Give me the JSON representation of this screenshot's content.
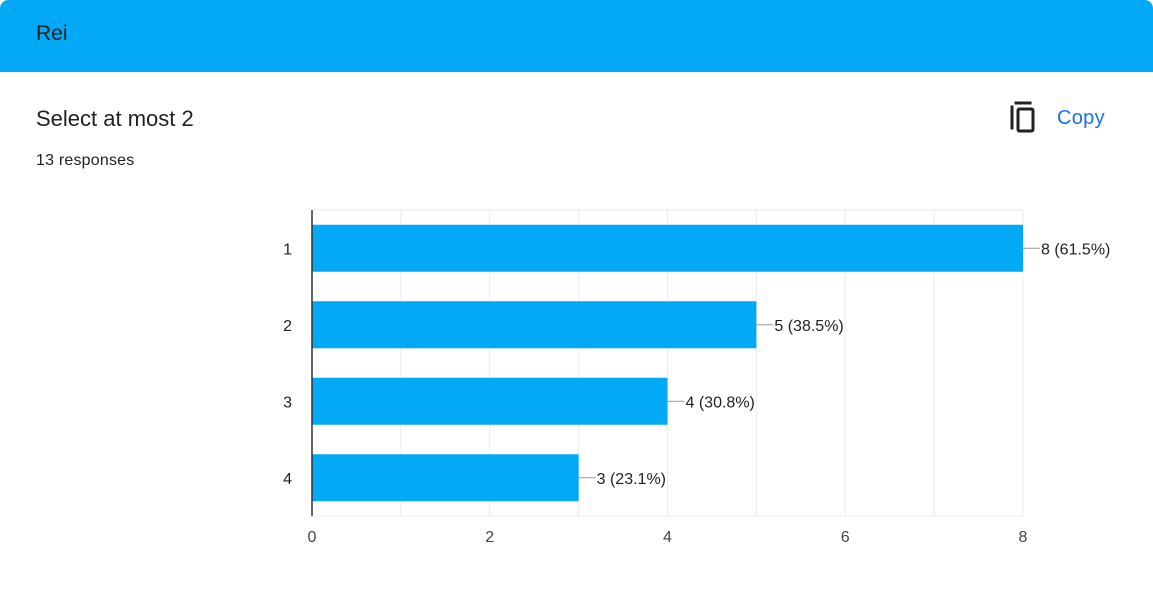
{
  "header": {
    "title": "Rei"
  },
  "question": {
    "title": "Select at most 2",
    "responses": "13 responses"
  },
  "actions": {
    "copy_label": "Copy",
    "copy_icon": "copy-icon"
  },
  "colors": {
    "accent": "#03a9f4",
    "link": "#1a73e8",
    "bar": "#03a9f4"
  },
  "chart_data": {
    "type": "bar",
    "orientation": "horizontal",
    "categories": [
      "1",
      "2",
      "3",
      "4"
    ],
    "values": [
      8,
      5,
      4,
      3
    ],
    "data_labels": [
      "8 (61.5%)",
      "5 (38.5%)",
      "4 (30.8%)",
      "3 (23.1%)"
    ],
    "xlim": [
      0,
      8
    ],
    "x_ticks": [
      "0",
      "2",
      "4",
      "6",
      "8"
    ],
    "grid": true,
    "title": "",
    "xlabel": "",
    "ylabel": ""
  }
}
